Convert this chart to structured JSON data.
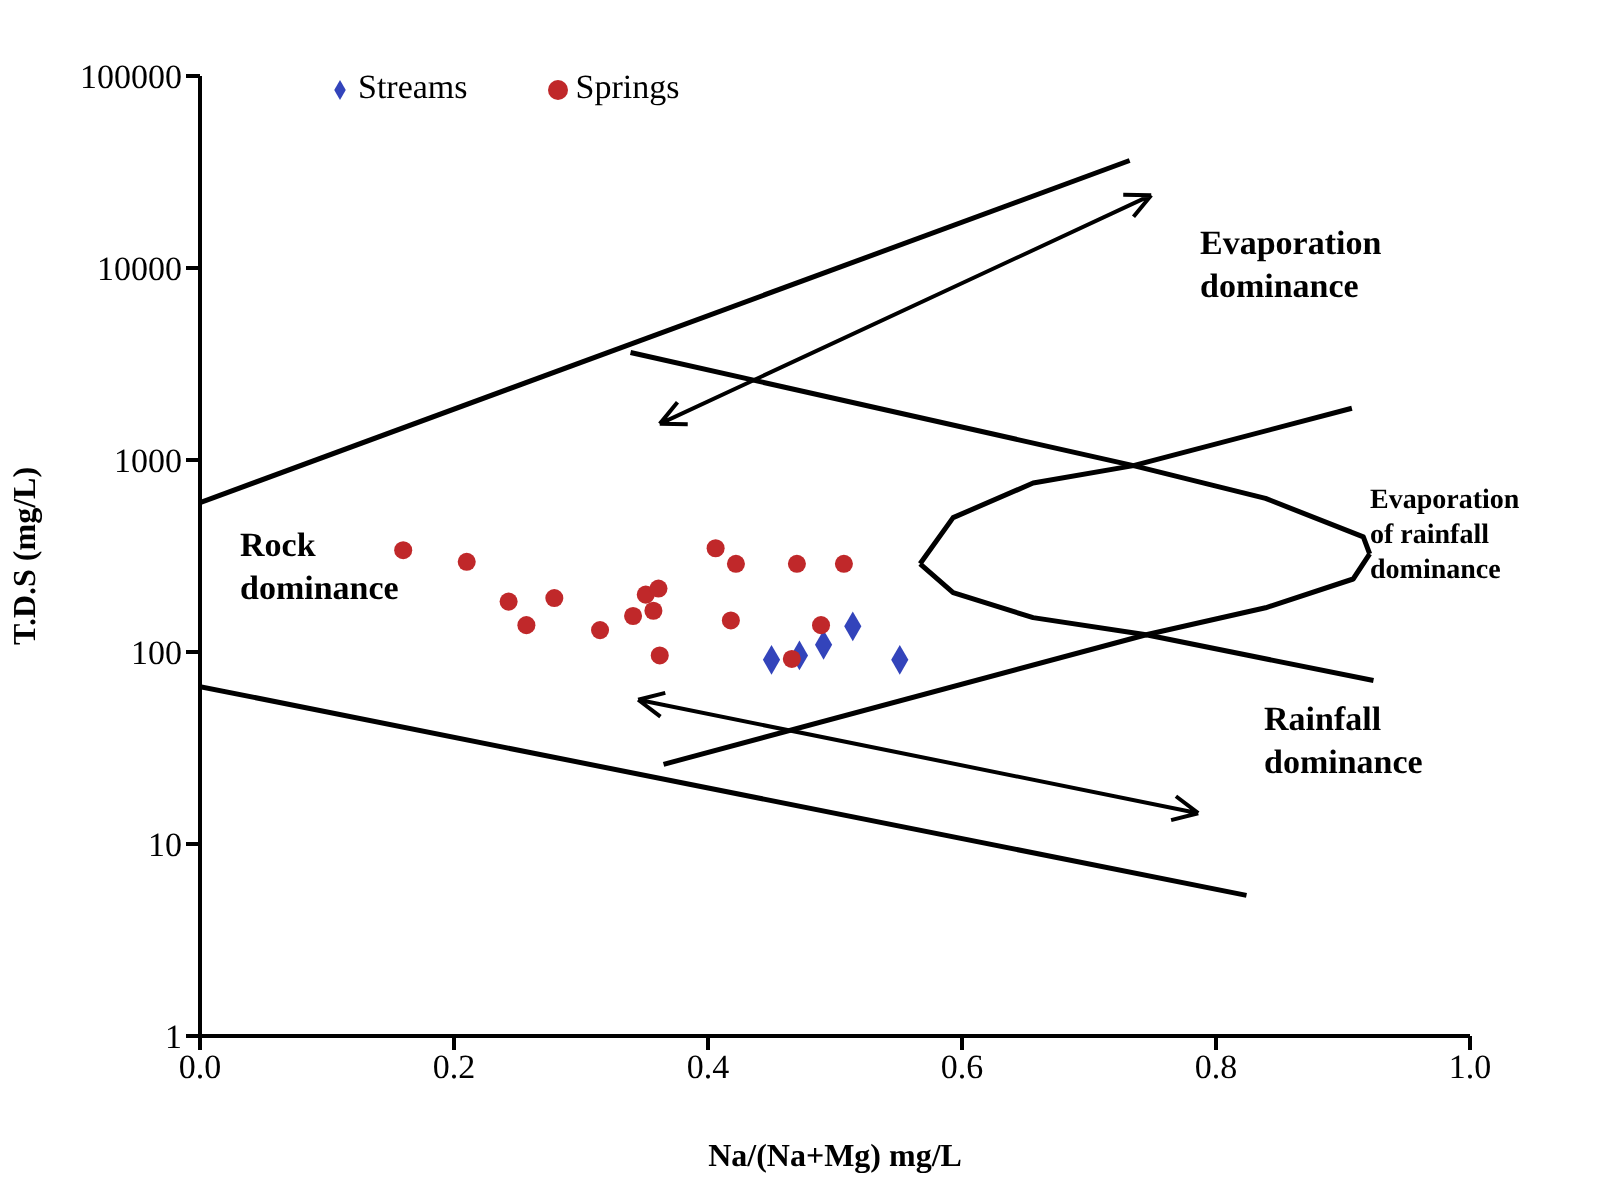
{
  "chart_data": {
    "type": "scatter",
    "xlabel": "Na/(Na+Mg) mg/L",
    "ylabel": "T.D.S (mg/L)",
    "log": "y",
    "xlim": [
      0,
      1
    ],
    "xticks": [
      {
        "value": 0,
        "label": "0.0"
      },
      0.2,
      0.4,
      0.6,
      0.8,
      {
        "value": 1,
        "label": "1.0"
      }
    ],
    "ylim": [
      1,
      100000
    ],
    "yticks": [
      1,
      10,
      100,
      1000,
      10000,
      100000
    ],
    "grid": false,
    "legend": "top left",
    "series": [
      {
        "name": "Streams",
        "color": "#3344bb",
        "marker": "diamond",
        "x": [
          0.45,
          0.472,
          0.491,
          0.514,
          0.551
        ],
        "values": [
          91,
          96,
          109,
          136,
          91
        ]
      },
      {
        "name": "Springs",
        "color": "#c0282a",
        "marker": "circle",
        "x": [
          0.16,
          0.21,
          0.243,
          0.257,
          0.279,
          0.315,
          0.341,
          0.351,
          0.357,
          0.361,
          0.362,
          0.406,
          0.422,
          0.418,
          0.47,
          0.507,
          0.489,
          0.466
        ],
        "values": [
          339,
          295,
          183,
          138,
          191,
          130,
          154,
          199,
          164,
          214,
          96,
          347,
          288,
          146,
          288,
          288,
          138,
          92
        ]
      },
      {
        "type": "line",
        "color": "#000000",
        "marker": "none",
        "x": [
          0,
          0.732
        ],
        "values": [
          600,
          36300
        ]
      },
      {
        "type": "line",
        "color": "#000000",
        "marker": "none",
        "x": [
          0.339,
          0.735
        ],
        "values": [
          3630,
          935
        ]
      },
      {
        "type": "line",
        "color": "#000000",
        "marker": "none",
        "x": [
          0.745,
          0.924
        ],
        "values": [
          123,
          71
        ]
      },
      {
        "type": "line",
        "color": "#000000",
        "marker": "none",
        "x": [
          0.365,
          0.745
        ],
        "values": [
          26,
          123
        ]
      },
      {
        "type": "line",
        "color": "#000000",
        "marker": "none",
        "x": [
          0.735,
          0.907
        ],
        "values": [
          935,
          1860
        ]
      },
      {
        "type": "line",
        "color": "#000000",
        "marker": "none",
        "x": [
          0,
          0.824
        ],
        "values": [
          66,
          5.4
        ]
      },
      {
        "type": "line",
        "color": "#000000",
        "marker": "none",
        "x": [
          0.567,
          0.593,
          0.656,
          0.735,
          0.839,
          0.916,
          0.921
        ],
        "values": [
          288,
          501,
          759,
          935,
          631,
          398,
          324
        ]
      },
      {
        "type": "line",
        "color": "#000000",
        "marker": "none",
        "x": [
          0.567,
          0.593,
          0.656,
          0.745,
          0.839,
          0.908,
          0.921
        ],
        "values": [
          288,
          204,
          151,
          123,
          170,
          240,
          324
        ]
      }
    ],
    "annotations": [
      "Evaporation\ndominance",
      "Evaporation\nof rainfall\ndominance",
      "Rock\ndominance",
      "Rainfall\ndominance"
    ]
  }
}
